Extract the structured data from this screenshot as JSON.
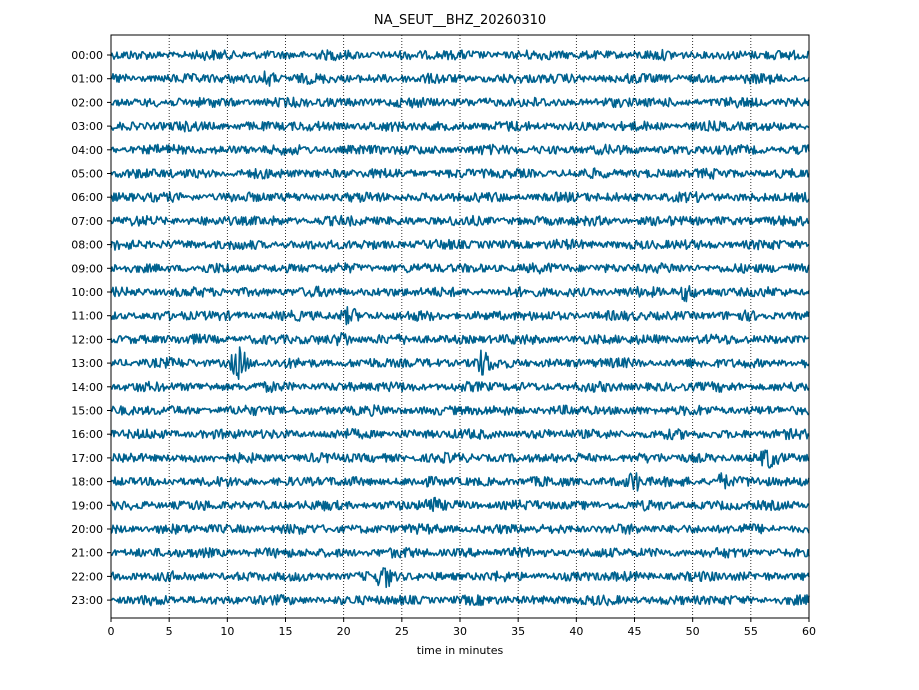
{
  "chart_data": {
    "type": "line",
    "title": "NA_SEUT__BHZ_20260310",
    "xlabel": "time in minutes",
    "ylabel": "",
    "xlim": [
      0,
      60
    ],
    "x_ticks": [
      "0",
      "5",
      "10",
      "15",
      "20",
      "25",
      "30",
      "35",
      "40",
      "45",
      "50",
      "55",
      "60"
    ],
    "row_labels": [
      "00:00",
      "01:00",
      "02:00",
      "03:00",
      "04:00",
      "05:00",
      "06:00",
      "07:00",
      "08:00",
      "09:00",
      "10:00",
      "11:00",
      "12:00",
      "13:00",
      "14:00",
      "15:00",
      "16:00",
      "17:00",
      "18:00",
      "19:00",
      "20:00",
      "21:00",
      "22:00",
      "23:00"
    ],
    "trace_color": "#00628f",
    "grid": "vertical dotted",
    "events": [
      {
        "hour": 13,
        "minute": 11,
        "strength": 3.0
      },
      {
        "hour": 13,
        "minute": 32,
        "strength": 2.2
      },
      {
        "hour": 18,
        "minute": 45,
        "strength": 1.7
      },
      {
        "hour": 22,
        "minute": 23.5,
        "strength": 1.9
      },
      {
        "hour": 17,
        "minute": 56.5,
        "strength": 1.5
      },
      {
        "hour": 10,
        "minute": 49.5,
        "strength": 1.5
      },
      {
        "hour": 19,
        "minute": 27.5,
        "strength": 1.4
      },
      {
        "hour": 1,
        "minute": 13.5,
        "strength": 1.3
      },
      {
        "hour": 11,
        "minute": 20.5,
        "strength": 1.3
      },
      {
        "hour": 12,
        "minute": 20,
        "strength": 1.2
      },
      {
        "hour": 18,
        "minute": 52.5,
        "strength": 1.3
      }
    ]
  }
}
